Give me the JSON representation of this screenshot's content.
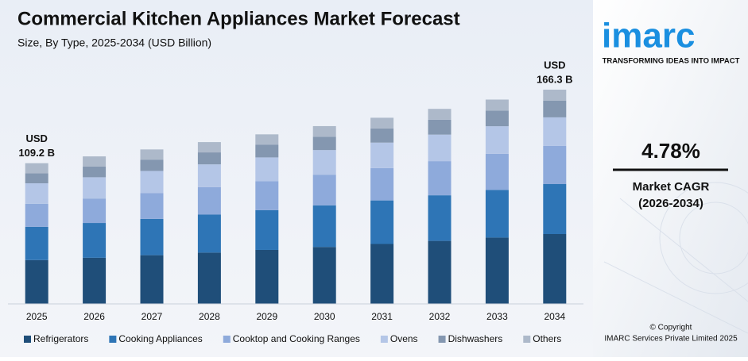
{
  "chart_data": {
    "type": "stacked_bar",
    "title": "Commercial Kitchen Appliances Market Forecast",
    "subtitle": "Size, By Type, 2025-2034 (USD Billion)",
    "categories": [
      "2025",
      "2026",
      "2027",
      "2028",
      "2029",
      "2030",
      "2031",
      "2032",
      "2033",
      "2034"
    ],
    "series": [
      {
        "name": "Refrigerators",
        "color": "#1f4e79",
        "values": [
          34.0,
          35.8,
          37.8,
          39.8,
          41.9,
          44.2,
          46.5,
          48.9,
          51.5,
          54.2
        ]
      },
      {
        "name": "Cooking Appliances",
        "color": "#2e75b6",
        "values": [
          25.8,
          27.0,
          28.2,
          29.5,
          30.9,
          32.3,
          33.8,
          35.4,
          37.0,
          38.8
        ]
      },
      {
        "name": "Cooktop and Cooking Ranges",
        "color": "#8eaadb",
        "values": [
          17.9,
          19.0,
          20.1,
          21.3,
          22.5,
          23.8,
          25.1,
          26.5,
          28.0,
          29.6
        ]
      },
      {
        "name": "Ovens",
        "color": "#b4c6e7",
        "values": [
          15.9,
          16.5,
          17.1,
          17.7,
          18.4,
          19.1,
          19.8,
          20.6,
          21.4,
          22.2
        ]
      },
      {
        "name": "Dishwashers",
        "color": "#8497b0",
        "values": [
          7.8,
          8.3,
          8.8,
          9.3,
          9.8,
          10.4,
          11.0,
          11.6,
          12.2,
          12.9
        ]
      },
      {
        "name": "Others",
        "color": "#adb9ca",
        "values": [
          7.8,
          7.9,
          7.9,
          8.0,
          8.1,
          8.2,
          8.3,
          8.4,
          8.5,
          8.6
        ]
      }
    ],
    "total_labels": [
      [
        "USD",
        "109.2 B"
      ],
      null,
      null,
      null,
      null,
      null,
      null,
      null,
      null,
      [
        "USD",
        "166.3 B"
      ]
    ]
  },
  "sidebar": {
    "logo": "imarc",
    "tagline": "TRANSFORMING IDEAS INTO IMPACT",
    "cagr": "4.78%",
    "cagr_label": "Market CAGR",
    "cagr_period": "(2026-2034)",
    "copyright": "© Copyright",
    "company": "IMARC Services Private Limited 2025"
  }
}
